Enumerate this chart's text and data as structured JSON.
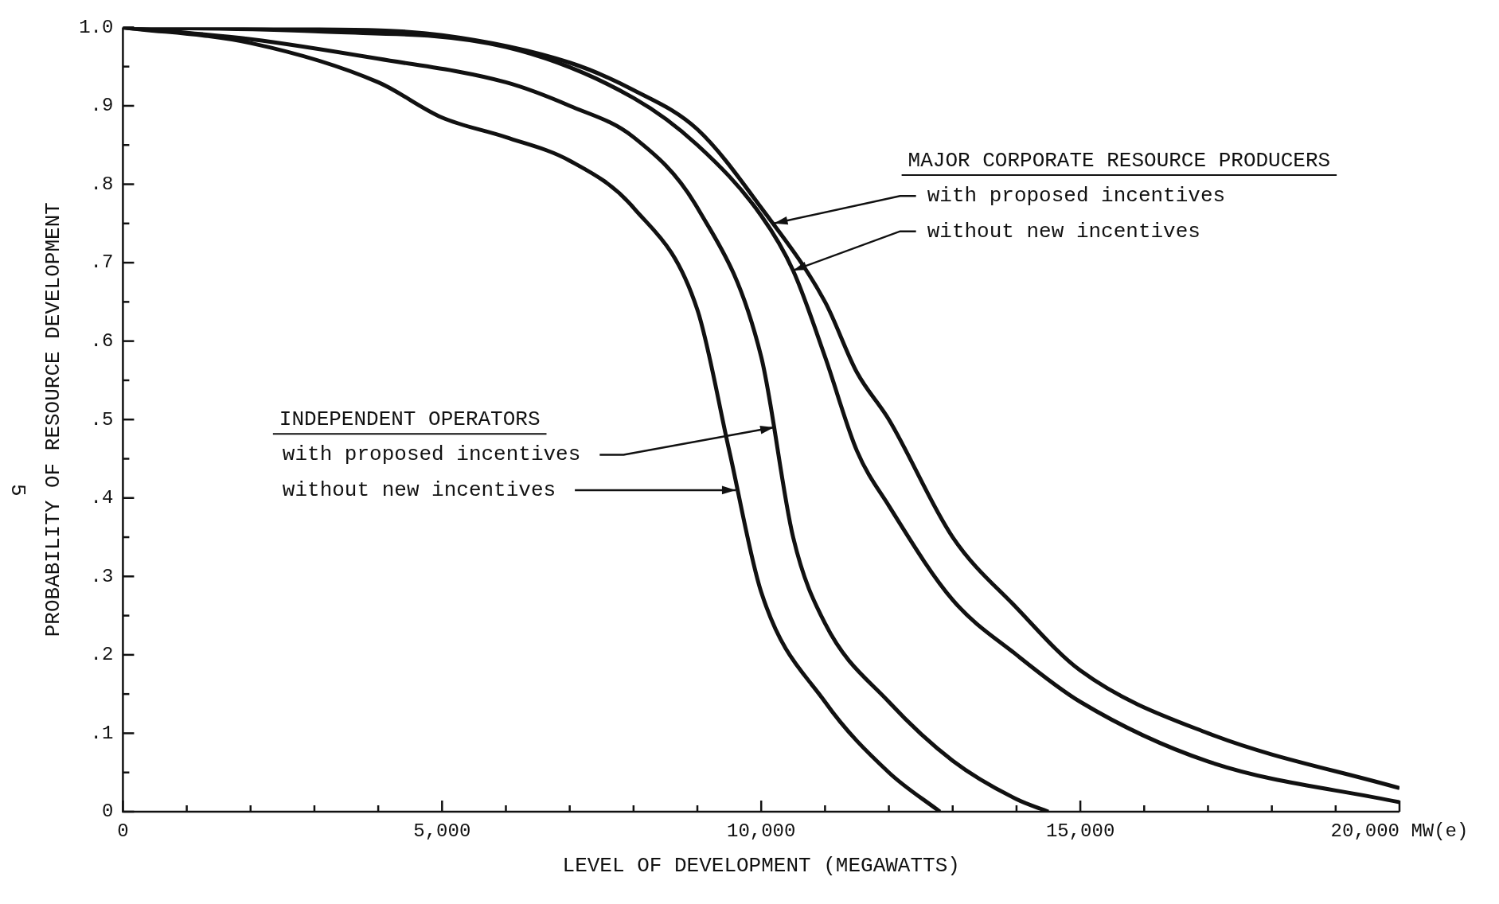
{
  "chart_data": {
    "type": "line",
    "xlabel": "LEVEL OF DEVELOPMENT (MEGAWATTS)",
    "ylabel": "PROBABILITY OF RESOURCE DEVELOPMENT",
    "xlim": [
      0,
      20000
    ],
    "ylim": [
      0,
      1
    ],
    "xticks": [
      0,
      {
        "value": 1000,
        "label": null
      },
      {
        "value": 2000,
        "label": null
      },
      {
        "value": 3000,
        "label": null
      },
      {
        "value": 4000,
        "label": null
      },
      {
        "value": 5000,
        "label": "5,000"
      },
      {
        "value": 6000,
        "label": null
      },
      {
        "value": 7000,
        "label": null
      },
      {
        "value": 8000,
        "label": null
      },
      {
        "value": 9000,
        "label": null
      },
      {
        "value": 10000,
        "label": "10,000"
      },
      {
        "value": 11000,
        "label": null
      },
      {
        "value": 12000,
        "label": null
      },
      {
        "value": 13000,
        "label": null
      },
      {
        "value": 14000,
        "label": null
      },
      {
        "value": 15000,
        "label": "15,000"
      },
      {
        "value": 16000,
        "label": null
      },
      {
        "value": 17000,
        "label": null
      },
      {
        "value": 18000,
        "label": null
      },
      {
        "value": 19000,
        "label": null
      },
      {
        "value": 20000,
        "label": "20,000 MW(e)"
      }
    ],
    "yticks": [
      0,
      {
        "value": 0.05,
        "label": null
      },
      {
        "value": 0.1,
        "label": ".1"
      },
      {
        "value": 0.15,
        "label": null
      },
      {
        "value": 0.2,
        "label": ".2"
      },
      {
        "value": 0.25,
        "label": null
      },
      {
        "value": 0.3,
        "label": ".3"
      },
      {
        "value": 0.35,
        "label": null
      },
      {
        "value": 0.4,
        "label": ".4"
      },
      {
        "value": 0.45,
        "label": null
      },
      {
        "value": 0.5,
        "label": ".5"
      },
      {
        "value": 0.55,
        "label": null
      },
      {
        "value": 0.6,
        "label": ".6"
      },
      {
        "value": 0.65,
        "label": null
      },
      {
        "value": 0.7,
        "label": ".7"
      },
      {
        "value": 0.75,
        "label": null
      },
      {
        "value": 0.8,
        "label": ".8"
      },
      {
        "value": 0.85,
        "label": null
      },
      {
        "value": 0.9,
        "label": ".9"
      },
      {
        "value": 0.95,
        "label": null
      },
      {
        "value": 1,
        "label": "1.0"
      }
    ],
    "grid": false,
    "legend": false,
    "marker": "none",
    "line_style": "solid",
    "annotations": [
      "MAJOR CORPORATE RESOURCE PRODUCERS",
      "INDEPENDENT OPERATORS",
      "5",
      {
        "text": "with proposed incentives",
        "x": 10200,
        "y": 0.75
      },
      {
        "text": "without new incentives",
        "x": 10500,
        "y": 0.69
      },
      {
        "text": "with proposed incentives",
        "x": 10200,
        "y": 0.49
      },
      {
        "text": "without new incentives",
        "x": 9600,
        "y": 0.41
      }
    ],
    "series": [
      {
        "color": "#111111",
        "x": [
          0,
          3000,
          5000,
          7000,
          8000,
          9000,
          10000,
          11000,
          11500,
          12000,
          13000,
          14000,
          15000,
          17000,
          20000
        ],
        "values": [
          1,
          0.998,
          0.99,
          0.955,
          0.92,
          0.87,
          0.77,
          0.65,
          0.56,
          0.5,
          0.35,
          0.26,
          0.18,
          0.1,
          0.03
        ]
      },
      {
        "color": "#111111",
        "x": [
          0,
          3000,
          6000,
          8000,
          9000,
          10000,
          10500,
          11000,
          11500,
          12000,
          13000,
          14000,
          15000,
          17000,
          20000
        ],
        "values": [
          1,
          0.995,
          0.975,
          0.91,
          0.85,
          0.76,
          0.69,
          0.58,
          0.46,
          0.39,
          0.27,
          0.2,
          0.14,
          0.064,
          0.012
        ]
      },
      {
        "color": "#111111",
        "x": [
          0,
          2000,
          4000,
          6000,
          7000,
          8000,
          9000,
          10000,
          10500,
          11000,
          12000,
          13000,
          14000,
          14500
        ],
        "values": [
          1,
          0.985,
          0.96,
          0.93,
          0.9,
          0.86,
          0.77,
          0.58,
          0.35,
          0.24,
          0.14,
          0.065,
          0.016,
          0
        ]
      },
      {
        "color": "#111111",
        "x": [
          0,
          2000,
          4000,
          5000,
          6000,
          7000,
          8000,
          9000,
          9500,
          10000,
          11000,
          12000,
          12800
        ],
        "values": [
          1,
          0.98,
          0.93,
          0.885,
          0.86,
          0.83,
          0.77,
          0.64,
          0.46,
          0.28,
          0.14,
          0.05,
          0
        ]
      }
    ]
  }
}
